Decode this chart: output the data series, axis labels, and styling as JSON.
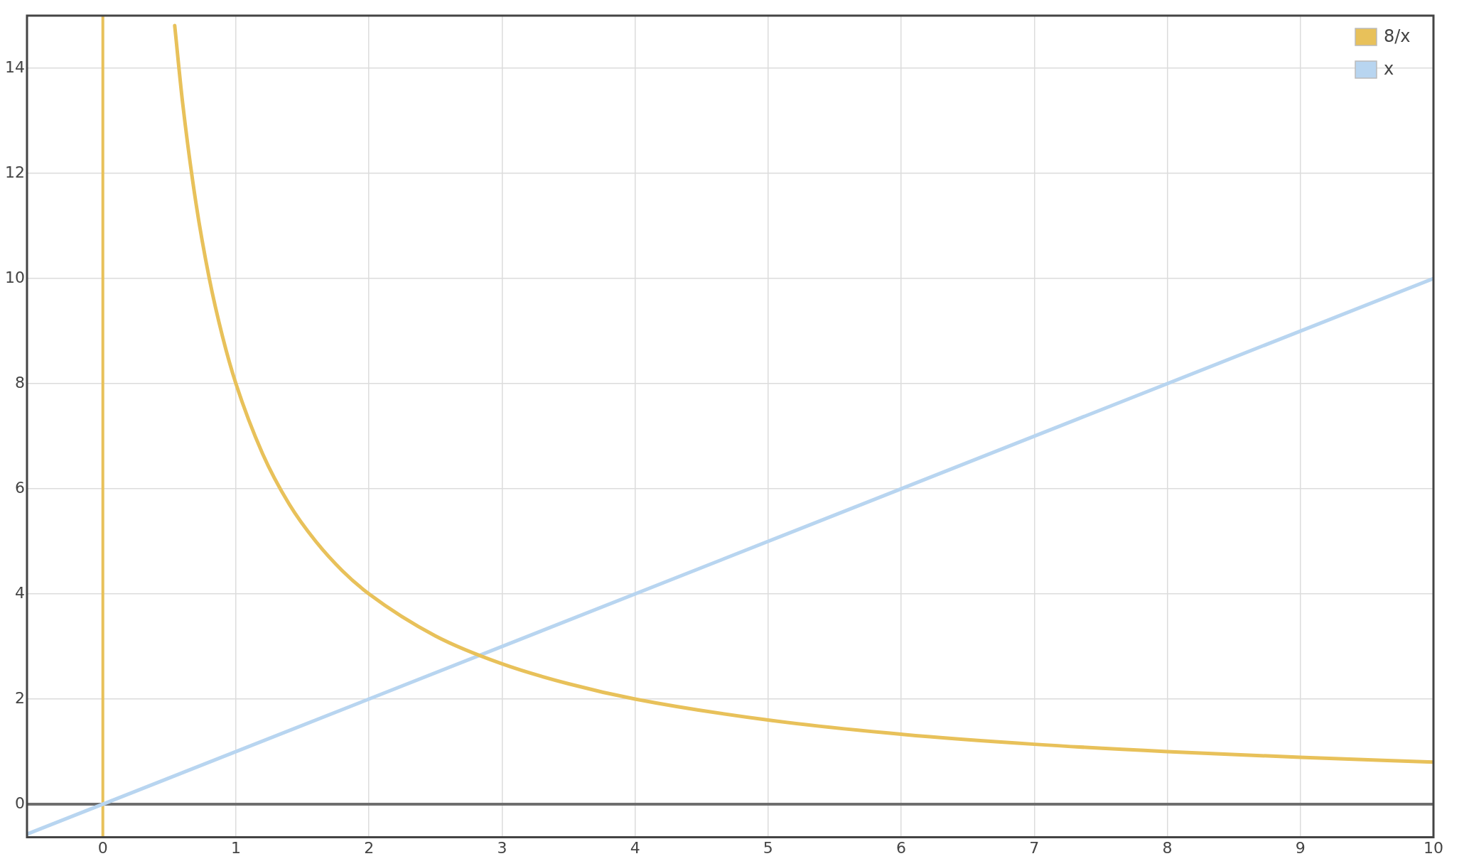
{
  "chart_data": {
    "type": "line",
    "xlim": [
      -0.57,
      10
    ],
    "ylim": [
      -0.63,
      15
    ],
    "xticks": [
      0,
      1,
      2,
      3,
      4,
      5,
      6,
      7,
      8,
      9,
      10
    ],
    "yticks": [
      0,
      2,
      4,
      6,
      8,
      10,
      12,
      14
    ],
    "grid": true,
    "legend": "top right",
    "marker": "none",
    "line_style": "solid",
    "series": [
      {
        "name": "8/x",
        "color": "#e8c15a",
        "x": [
          0.54,
          0.6,
          0.7,
          0.8,
          0.9,
          1,
          1.2,
          1.4,
          1.6,
          1.8,
          2,
          2.5,
          3,
          3.5,
          4,
          5,
          6,
          7,
          8,
          9,
          10
        ],
        "values": [
          14.81,
          13.33,
          11.43,
          10,
          8.89,
          8,
          6.67,
          5.71,
          5,
          4.44,
          4,
          3.2,
          2.67,
          2.29,
          2,
          1.6,
          1.33,
          1.14,
          1,
          0.89,
          0.8
        ]
      },
      {
        "name": "x",
        "color": "#b8d5f0",
        "x": [
          -0.57,
          10
        ],
        "values": [
          -0.57,
          10
        ]
      }
    ],
    "ref_lines": [
      {
        "axis": "x",
        "value": 0,
        "color": "#e8c15a"
      },
      {
        "axis": "y",
        "value": 0,
        "color": "#6e6e6e"
      }
    ]
  }
}
